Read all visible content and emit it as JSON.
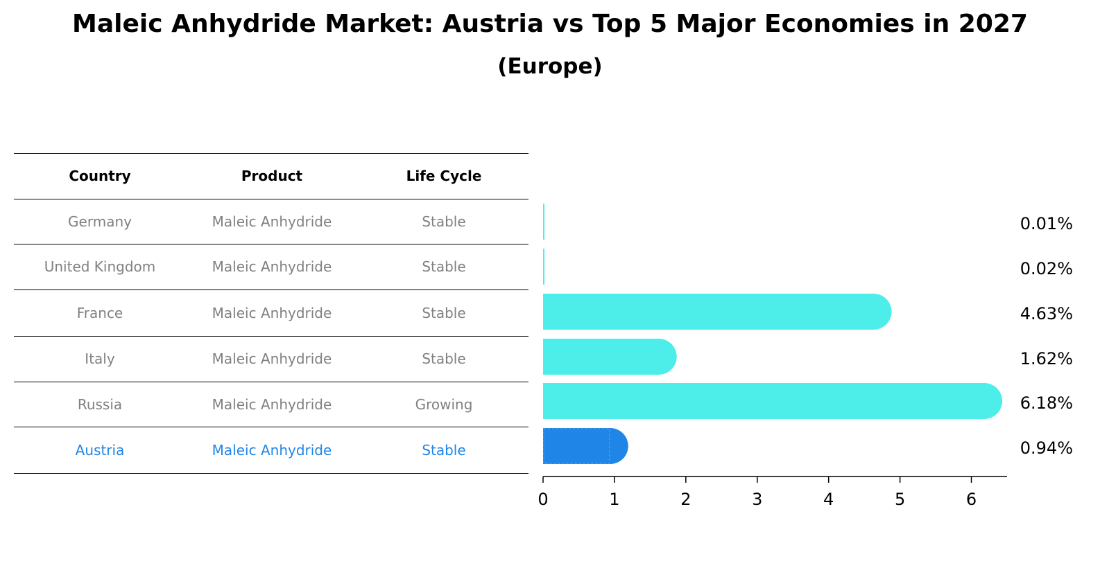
{
  "title": "Maleic Anhydride Market: Austria vs Top 5 Major Economies in 2027",
  "subtitle": "(Europe)",
  "table": {
    "headers": [
      "Country",
      "Product",
      "Life Cycle"
    ],
    "rows": [
      {
        "country": "Germany",
        "product": "Maleic Anhydride",
        "life_cycle": "Stable"
      },
      {
        "country": "United Kingdom",
        "product": "Maleic Anhydride",
        "life_cycle": "Stable"
      },
      {
        "country": "France",
        "product": "Maleic Anhydride",
        "life_cycle": "Stable"
      },
      {
        "country": "Italy",
        "product": "Maleic Anhydride",
        "life_cycle": "Stable"
      },
      {
        "country": "Russia",
        "product": "Maleic Anhydride",
        "life_cycle": "Growing"
      },
      {
        "country": "Austria",
        "product": "Maleic Anhydride",
        "life_cycle": "Stable"
      }
    ]
  },
  "colors": {
    "bar": "#4deeea",
    "highlight": "#1f86e8",
    "muted_text": "#808080"
  },
  "chart_data": {
    "type": "bar",
    "orientation": "horizontal",
    "categories": [
      "Germany",
      "United Kingdom",
      "France",
      "Italy",
      "Russia",
      "Austria"
    ],
    "values": [
      0.01,
      0.02,
      4.63,
      1.62,
      6.18,
      0.94
    ],
    "value_labels": [
      "0.01%",
      "0.02%",
      "4.63%",
      "1.62%",
      "6.18%",
      "0.94%"
    ],
    "highlight_category": "Austria",
    "xlim": [
      0,
      6.5
    ],
    "xticks": [
      0,
      1,
      2,
      3,
      4,
      5,
      6
    ],
    "grid": false
  }
}
